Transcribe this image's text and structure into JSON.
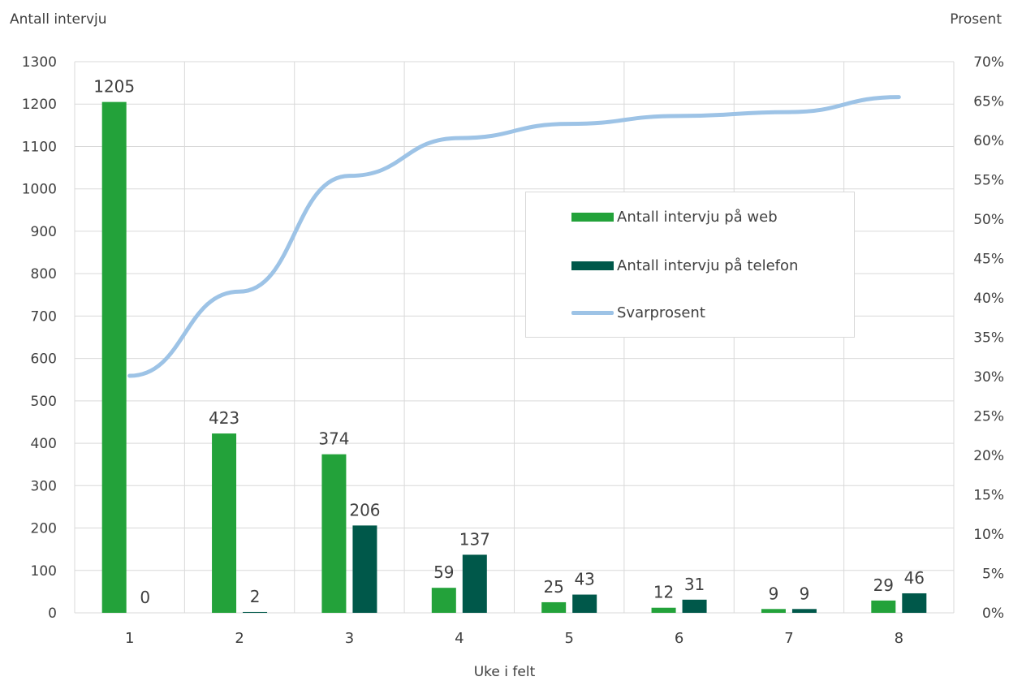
{
  "chart_data": {
    "type": "bar",
    "xlabel": "Uke i felt",
    "ylabel": "Antall intervju",
    "y2label": "Prosent",
    "categories": [
      "1",
      "2",
      "3",
      "4",
      "5",
      "6",
      "7",
      "8"
    ],
    "ylim": [
      0,
      1300
    ],
    "yticks": [
      0,
      100,
      200,
      300,
      400,
      500,
      600,
      700,
      800,
      900,
      1000,
      1100,
      1200,
      1300
    ],
    "y2lim": [
      0,
      70
    ],
    "y2ticks": [
      "0%",
      "5%",
      "10%",
      "15%",
      "20%",
      "25%",
      "30%",
      "35%",
      "40%",
      "45%",
      "50%",
      "55%",
      "60%",
      "65%",
      "70%"
    ],
    "grid": true,
    "legend_position": "center-right",
    "series": [
      {
        "name": "Antall intervju på web",
        "type": "bar",
        "axis": "left",
        "color": "#23a23a",
        "values": [
          1205,
          423,
          374,
          59,
          25,
          12,
          9,
          29
        ]
      },
      {
        "name": "Antall intervju på telefon",
        "type": "bar",
        "axis": "right-of-pair",
        "color": "#00584a",
        "values": [
          0,
          2,
          206,
          137,
          43,
          31,
          9,
          46
        ]
      },
      {
        "name": "Svarprosent",
        "type": "line",
        "axis": "right",
        "color": "#9dc3e6",
        "values": [
          30.1,
          40.8,
          55.5,
          60.3,
          62.1,
          63.1,
          63.6,
          65.5
        ]
      }
    ]
  }
}
